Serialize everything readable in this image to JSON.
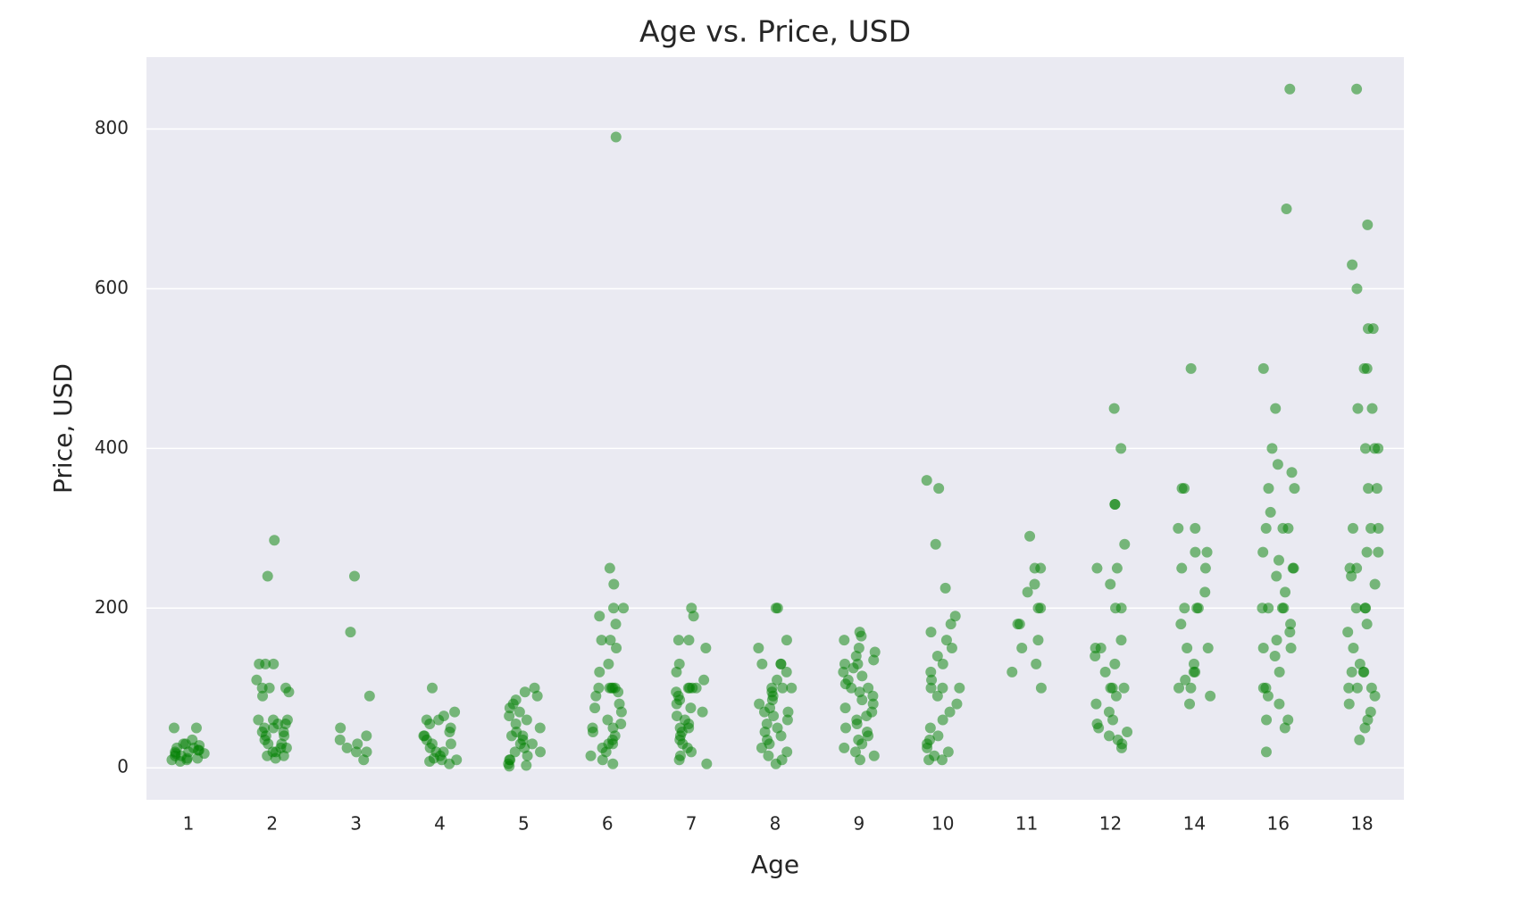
{
  "chart_data": {
    "type": "strip",
    "title": "Age vs. Price, USD",
    "x_label": "Age",
    "y_label": "Price, USD",
    "color": "#008000",
    "opacity": 0.5,
    "grid": true,
    "ylim": [
      -40,
      890
    ],
    "yticks": [
      0,
      200,
      400,
      600,
      800
    ],
    "categories": [
      "1",
      "2",
      "3",
      "4",
      "5",
      "6",
      "7",
      "8",
      "9",
      "10",
      "11",
      "12",
      "14",
      "16",
      "18"
    ],
    "values": [
      [
        50,
        50,
        30,
        28,
        25,
        22,
        20,
        18,
        15,
        12,
        10,
        8,
        25,
        20,
        15,
        30,
        35,
        10,
        12,
        18,
        22
      ],
      [
        285,
        240,
        130,
        130,
        130,
        110,
        100,
        100,
        100,
        95,
        90,
        60,
        60,
        55,
        50,
        50,
        45,
        40,
        40,
        35,
        30,
        30,
        25,
        25,
        20,
        20,
        15,
        15,
        12,
        60,
        55,
        45
      ],
      [
        240,
        170,
        90,
        50,
        40,
        35,
        30,
        25,
        20,
        20,
        10
      ],
      [
        100,
        70,
        65,
        60,
        55,
        50,
        45,
        40,
        35,
        30,
        30,
        25,
        20,
        20,
        15,
        12,
        10,
        10,
        8,
        5,
        60,
        40
      ],
      [
        100,
        95,
        90,
        85,
        80,
        75,
        70,
        65,
        60,
        55,
        50,
        45,
        40,
        35,
        30,
        25,
        20,
        15,
        10,
        5,
        3,
        2,
        30,
        40,
        20,
        10
      ],
      [
        790,
        250,
        230,
        200,
        200,
        190,
        180,
        160,
        160,
        150,
        130,
        120,
        100,
        100,
        100,
        100,
        95,
        90,
        80,
        75,
        70,
        60,
        55,
        50,
        45,
        40,
        35,
        30,
        25,
        20,
        15,
        10,
        5,
        100,
        50,
        30
      ],
      [
        200,
        190,
        160,
        160,
        150,
        130,
        120,
        110,
        100,
        100,
        100,
        95,
        90,
        85,
        80,
        75,
        70,
        65,
        60,
        55,
        50,
        45,
        40,
        35,
        30,
        25,
        20,
        15,
        10,
        5,
        100,
        50
      ],
      [
        200,
        200,
        160,
        150,
        130,
        130,
        120,
        110,
        100,
        100,
        100,
        95,
        90,
        85,
        80,
        75,
        70,
        65,
        60,
        55,
        50,
        45,
        40,
        35,
        30,
        25,
        20,
        15,
        10,
        5,
        130,
        70
      ],
      [
        170,
        165,
        160,
        150,
        145,
        140,
        135,
        130,
        125,
        120,
        115,
        110,
        105,
        100,
        95,
        90,
        85,
        80,
        75,
        70,
        65,
        60,
        55,
        50,
        45,
        40,
        35,
        30,
        25,
        20,
        15,
        10,
        130,
        100
      ],
      [
        360,
        350,
        280,
        225,
        190,
        180,
        170,
        160,
        150,
        140,
        130,
        120,
        110,
        100,
        100,
        90,
        80,
        70,
        60,
        50,
        40,
        35,
        30,
        25,
        20,
        15,
        10,
        10,
        100
      ],
      [
        290,
        250,
        250,
        230,
        220,
        200,
        200,
        180,
        180,
        160,
        150,
        130,
        120,
        100
      ],
      [
        450,
        400,
        330,
        330,
        280,
        250,
        250,
        230,
        200,
        200,
        160,
        150,
        150,
        140,
        130,
        120,
        100,
        100,
        100,
        90,
        80,
        70,
        60,
        55,
        50,
        45,
        40,
        35,
        30,
        25
      ],
      [
        500,
        350,
        350,
        300,
        300,
        270,
        270,
        250,
        250,
        220,
        200,
        200,
        200,
        180,
        150,
        150,
        130,
        120,
        120,
        110,
        100,
        100,
        90,
        80
      ],
      [
        850,
        700,
        500,
        450,
        400,
        380,
        370,
        350,
        350,
        320,
        300,
        300,
        300,
        270,
        260,
        250,
        250,
        240,
        220,
        200,
        200,
        200,
        200,
        180,
        170,
        160,
        150,
        150,
        140,
        120,
        100,
        100,
        90,
        80,
        60,
        60,
        50,
        20
      ],
      [
        850,
        680,
        630,
        600,
        550,
        550,
        500,
        500,
        450,
        450,
        400,
        400,
        400,
        350,
        350,
        300,
        300,
        300,
        270,
        270,
        250,
        250,
        240,
        230,
        200,
        200,
        200,
        180,
        170,
        150,
        130,
        120,
        120,
        120,
        100,
        100,
        100,
        90,
        80,
        70,
        60,
        50,
        35
      ]
    ]
  }
}
